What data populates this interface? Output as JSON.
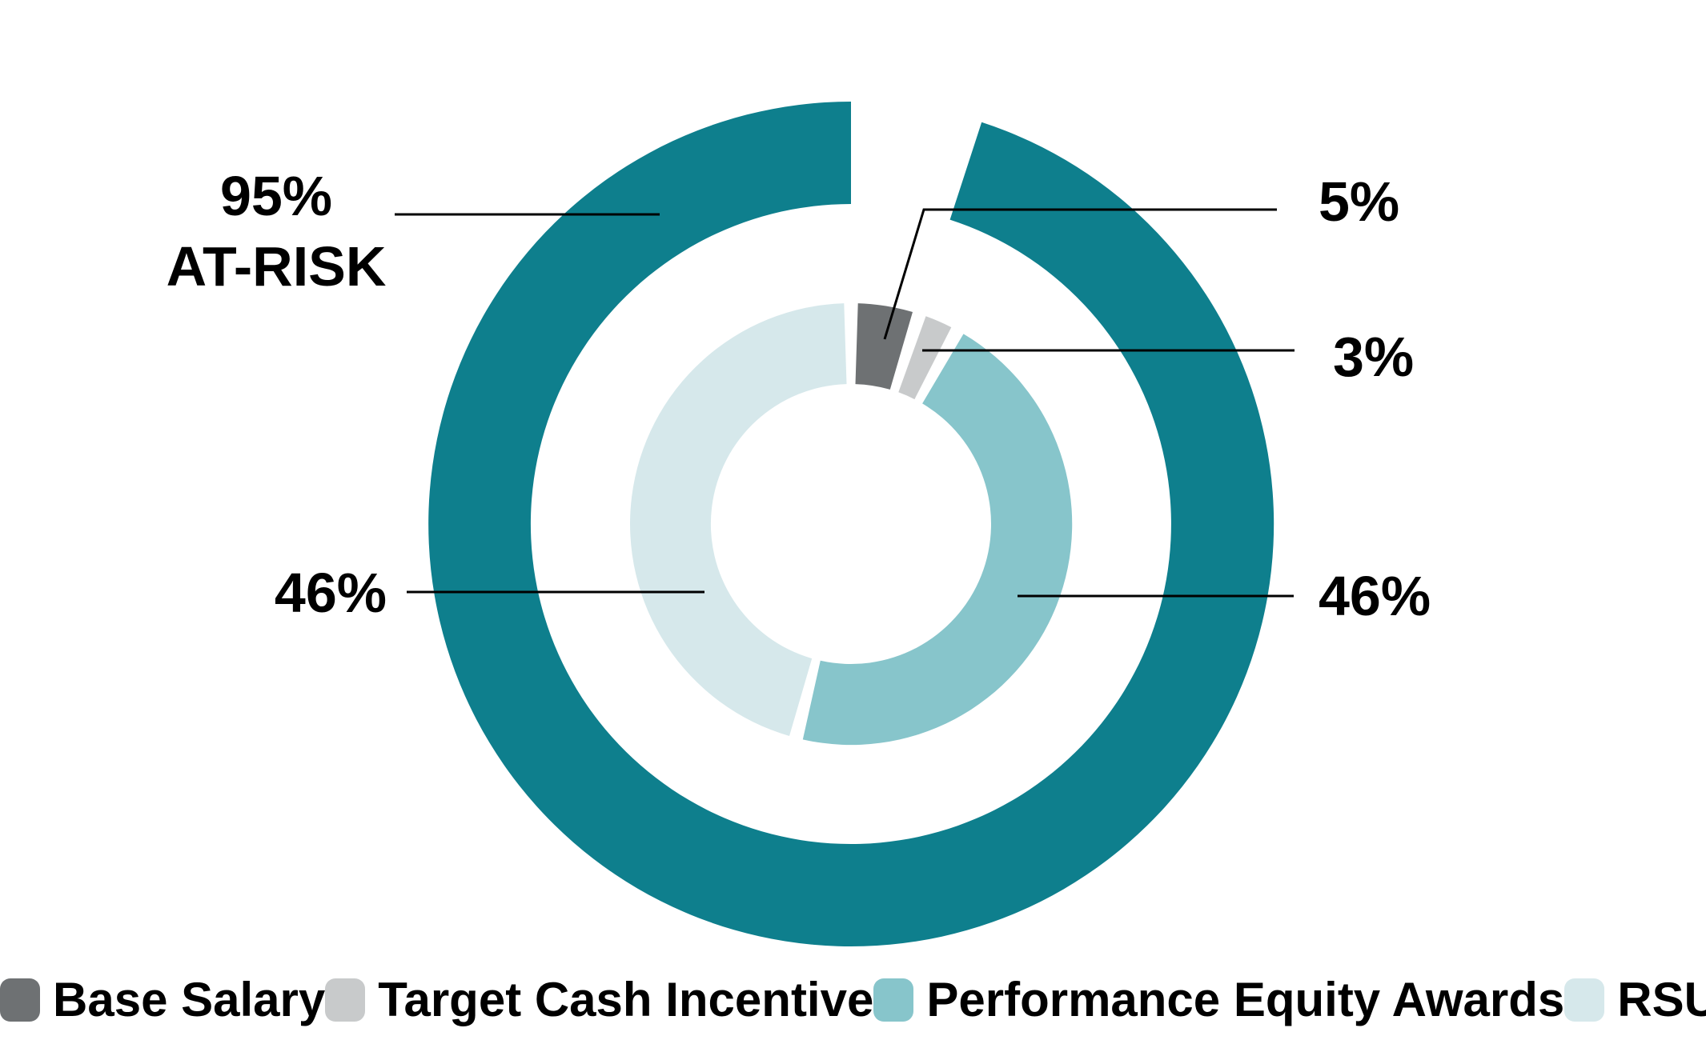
{
  "chart_data": {
    "type": "pie",
    "subtype": "double-donut",
    "title": "",
    "legend_position": "bottom",
    "inner_ring": {
      "start_angle_deg": 0,
      "direction": "clockwise",
      "pad_deg": 3.6,
      "outer_radius": 276,
      "inner_radius": 175,
      "slices": [
        {
          "label": "Base Salary",
          "value": 5,
          "display": "5%",
          "color": "#6e7173"
        },
        {
          "label": "Target Cash Incentive",
          "value": 3,
          "display": "3%",
          "color": "#c8cacb"
        },
        {
          "label": "Performance Equity Awards",
          "value": 46,
          "display": "46%",
          "color": "#87c5cb"
        },
        {
          "label": "RSUs",
          "value": 46,
          "display": "46%",
          "color": "#d6e8eb"
        }
      ]
    },
    "outer_ring": {
      "start_angle_deg": 18,
      "end_angle_deg": 360,
      "outer_radius": 528,
      "inner_radius": 400,
      "slices": [
        {
          "label": "AT-RISK",
          "value": 95,
          "display": "95%",
          "color": "#0e7f8d"
        },
        {
          "label": "gap",
          "value": 5,
          "display": "",
          "color": "none"
        }
      ]
    }
  },
  "labels": {
    "at_risk_pct": "95%",
    "at_risk_caption": "AT-RISK",
    "base_salary_pct": "5%",
    "target_cash_incentive_pct": "3%",
    "rsus_pct": "46%",
    "performance_equity_pct": "46%"
  },
  "colors": {
    "outer_teal": "#0e7f8d",
    "medium_teal": "#87c5cb",
    "light_teal": "#d6e8eb",
    "dark_gray": "#6e7173",
    "light_gray": "#c8cacb",
    "leader_line": "#000000",
    "text": "#000000",
    "background": "#ffffff"
  }
}
